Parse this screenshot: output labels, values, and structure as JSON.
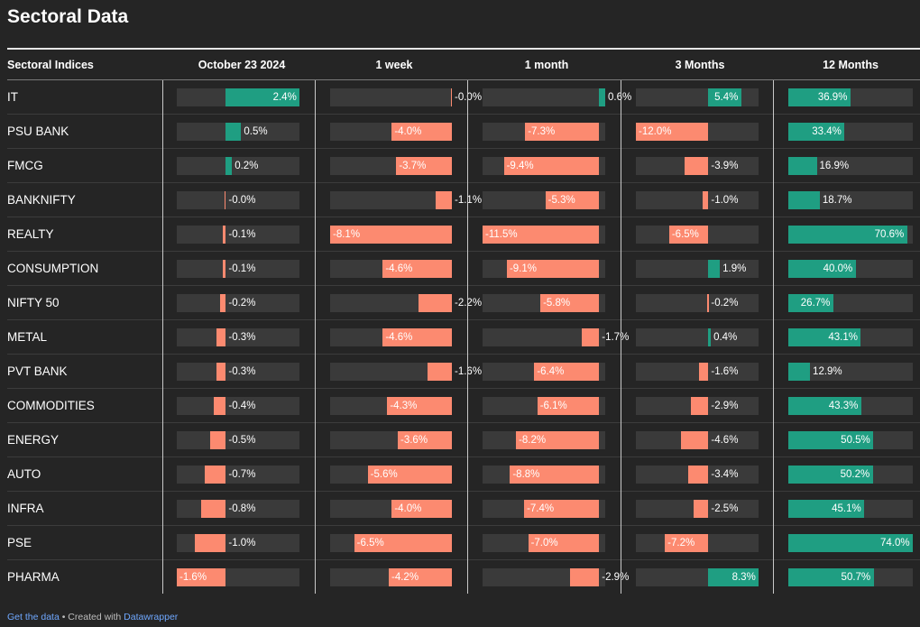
{
  "title": "Sectoral Data",
  "columns": [
    "Sectoral Indices",
    "October 23 2024",
    "1 week",
    "1 month",
    "3 Months",
    "12 Months"
  ],
  "rows": [
    {
      "name": "IT",
      "values": [
        2.4,
        -0.0,
        0.6,
        5.4,
        36.9
      ],
      "labels": [
        "2.4%",
        "-0.0%",
        "0.6%",
        "5.4%",
        "36.9%"
      ]
    },
    {
      "name": "PSU BANK",
      "values": [
        0.5,
        -4.0,
        -7.3,
        -12.0,
        33.4
      ],
      "labels": [
        "0.5%",
        "-4.0%",
        "-7.3%",
        "-12.0%",
        "33.4%"
      ]
    },
    {
      "name": "FMCG",
      "values": [
        0.2,
        -3.7,
        -9.4,
        -3.9,
        16.9
      ],
      "labels": [
        "0.2%",
        "-3.7%",
        "-9.4%",
        "-3.9%",
        "16.9%"
      ]
    },
    {
      "name": "BANKNIFTY",
      "values": [
        -0.0,
        -1.1,
        -5.3,
        -1.0,
        18.7
      ],
      "labels": [
        "-0.0%",
        "-1.1%",
        "-5.3%",
        "-1.0%",
        "18.7%"
      ]
    },
    {
      "name": "REALTY",
      "values": [
        -0.1,
        -8.1,
        -11.5,
        -6.5,
        70.6
      ],
      "labels": [
        "-0.1%",
        "-8.1%",
        "-11.5%",
        "-6.5%",
        "70.6%"
      ]
    },
    {
      "name": "CONSUMPTION",
      "values": [
        -0.1,
        -4.6,
        -9.1,
        1.9,
        40.0
      ],
      "labels": [
        "-0.1%",
        "-4.6%",
        "-9.1%",
        "1.9%",
        "40.0%"
      ]
    },
    {
      "name": "NIFTY 50",
      "values": [
        -0.2,
        -2.2,
        -5.8,
        -0.2,
        26.7
      ],
      "labels": [
        "-0.2%",
        "-2.2%",
        "-5.8%",
        "-0.2%",
        "26.7%"
      ]
    },
    {
      "name": "METAL",
      "values": [
        -0.3,
        -4.6,
        -1.7,
        0.4,
        43.1
      ],
      "labels": [
        "-0.3%",
        "-4.6%",
        "-1.7%",
        "0.4%",
        "43.1%"
      ]
    },
    {
      "name": "PVT BANK",
      "values": [
        -0.3,
        -1.6,
        -6.4,
        -1.6,
        12.9
      ],
      "labels": [
        "-0.3%",
        "-1.6%",
        "-6.4%",
        "-1.6%",
        "12.9%"
      ]
    },
    {
      "name": "COMMODITIES",
      "values": [
        -0.4,
        -4.3,
        -6.1,
        -2.9,
        43.3
      ],
      "labels": [
        "-0.4%",
        "-4.3%",
        "-6.1%",
        "-2.9%",
        "43.3%"
      ]
    },
    {
      "name": "ENERGY",
      "values": [
        -0.5,
        -3.6,
        -8.2,
        -4.6,
        50.5
      ],
      "labels": [
        "-0.5%",
        "-3.6%",
        "-8.2%",
        "-4.6%",
        "50.5%"
      ]
    },
    {
      "name": "AUTO",
      "values": [
        -0.7,
        -5.6,
        -8.8,
        -3.4,
        50.2
      ],
      "labels": [
        "-0.7%",
        "-5.6%",
        "-8.8%",
        "-3.4%",
        "50.2%"
      ]
    },
    {
      "name": "INFRA",
      "values": [
        -0.8,
        -4.0,
        -7.4,
        -2.5,
        45.1
      ],
      "labels": [
        "-0.8%",
        "-4.0%",
        "-7.4%",
        "-2.5%",
        "45.1%"
      ]
    },
    {
      "name": "PSE",
      "values": [
        -1.0,
        -6.5,
        -7.0,
        -7.2,
        74.0
      ],
      "labels": [
        "-1.0%",
        "-6.5%",
        "-7.0%",
        "-7.2%",
        "74.0%"
      ]
    },
    {
      "name": "PHARMA",
      "values": [
        -1.6,
        -4.2,
        -2.9,
        8.3,
        50.7
      ],
      "labels": [
        "-1.6%",
        "-4.2%",
        "-2.9%",
        "8.3%",
        "50.7%"
      ]
    }
  ],
  "column_domains": [
    [
      -1.6,
      2.4
    ],
    [
      -8.1,
      0.0
    ],
    [
      -11.5,
      0.6
    ],
    [
      -12.0,
      8.3
    ],
    [
      0.0,
      74.0
    ]
  ],
  "colors": {
    "positive": "#1f9e82",
    "negative": "#fc8a70",
    "track": "#3a3a3a",
    "background": "#252525"
  },
  "footer": {
    "get_data": "Get the data",
    "separator": " • Created with ",
    "tool": "Datawrapper"
  }
}
